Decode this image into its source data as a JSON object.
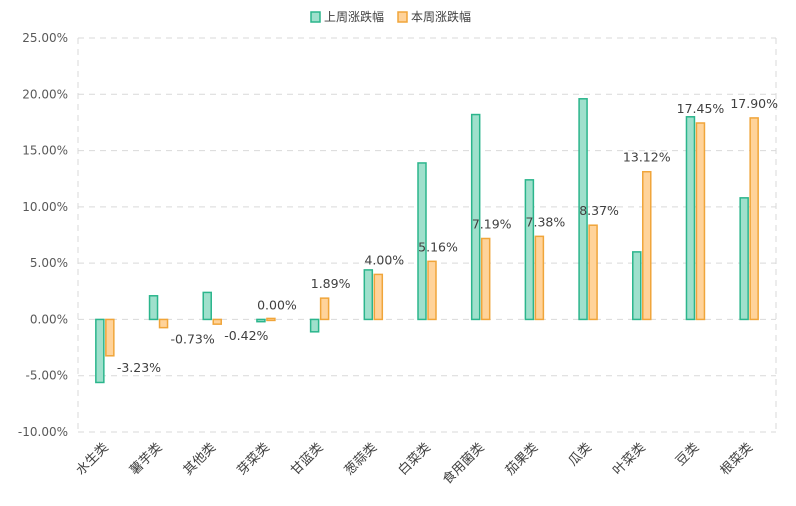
{
  "chart_data": {
    "type": "bar",
    "categories": [
      "水生类",
      "薯芋类",
      "其他类",
      "芽菜类",
      "甘蓝类",
      "葱蒜类",
      "白菜类",
      "食用菌类",
      "茄果类",
      "瓜类",
      "叶菜类",
      "豆类",
      "根菜类"
    ],
    "series": [
      {
        "name": "上周涨跌幅",
        "values": [
          -5.6,
          2.1,
          2.4,
          -0.2,
          -1.1,
          4.4,
          13.9,
          18.2,
          12.4,
          19.6,
          6.0,
          18.0,
          10.8
        ],
        "fill": "#9fe0cc",
        "stroke": "#2bb58c",
        "labels": [
          "",
          "",
          "",
          "",
          "",
          "",
          "",
          "",
          "",
          "",
          "",
          "",
          ""
        ]
      },
      {
        "name": "本周涨跌幅",
        "values": [
          -3.23,
          -0.73,
          -0.42,
          0.0,
          1.89,
          4.0,
          5.16,
          7.19,
          7.38,
          8.37,
          13.12,
          17.45,
          17.9
        ],
        "fill": "#ffd39a",
        "stroke": "#f0a53a",
        "labels": [
          "-3.23%",
          "-0.73%",
          "-0.42%",
          "0.00%",
          "1.89%",
          "4.00%",
          "5.16%",
          "7.19%",
          "7.38%",
          "8.37%",
          "13.12%",
          "17.45%",
          "17.90%"
        ]
      }
    ],
    "y_ticks": [
      "25.00%",
      "20.00%",
      "15.00%",
      "10.00%",
      "5.00%",
      "0.00%",
      "-5.00%",
      "-10.00%"
    ],
    "ylim": [
      -10,
      25
    ],
    "y_tick_values": [
      25,
      20,
      15,
      10,
      5,
      0,
      -5,
      -10
    ],
    "legend_position": "top-center",
    "grid": "horizontal-dashed",
    "title": "",
    "xlabel": "",
    "ylabel": ""
  }
}
